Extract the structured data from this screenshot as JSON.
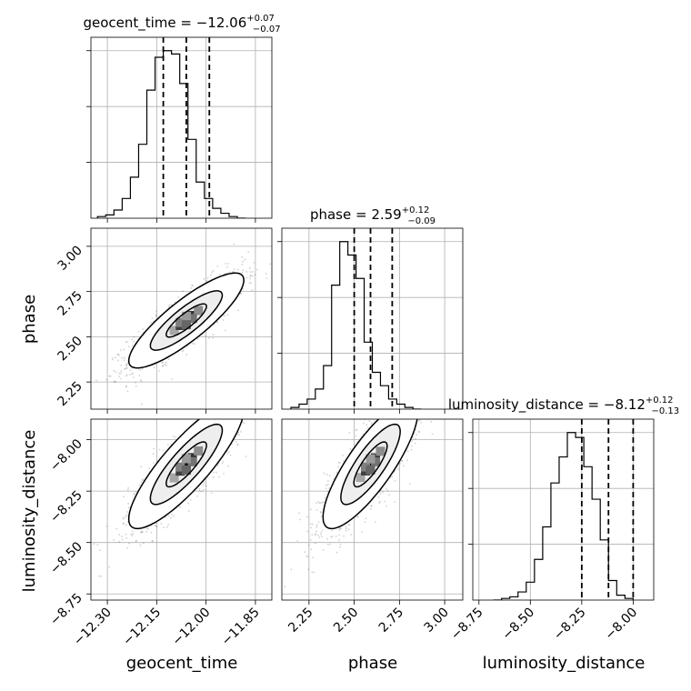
{
  "chart_data": {
    "type": "corner",
    "parameters": [
      {
        "name": "geocent_time",
        "median": "−12.06",
        "plus": "+0.07",
        "minus": "−0.07",
        "range": [
          -12.35,
          -11.8
        ],
        "ticks": [
          -12.3,
          -12.15,
          -12.0,
          -11.85
        ],
        "tick_labels": [
          "−12.30",
          "−12.15",
          "−12.00",
          "−11.85"
        ],
        "quantiles": [
          -12.13,
          -12.06,
          -11.99
        ],
        "hist_start": -12.33,
        "hist_bin": 0.025,
        "hist": [
          1,
          2,
          5,
          12,
          25,
          45,
          78,
          98,
          102,
          100,
          82,
          48,
          22,
          12,
          6,
          3,
          1,
          0
        ]
      },
      {
        "name": "phase",
        "median": "2.59",
        "plus": "+0.12",
        "minus": "−0.09",
        "range": [
          2.1,
          3.1
        ],
        "ticks": [
          2.25,
          2.5,
          2.75,
          3.0
        ],
        "tick_labels": [
          "2.25",
          "2.50",
          "2.75",
          "3.00"
        ],
        "quantiles": [
          2.5,
          2.59,
          2.71
        ],
        "hist_start": 2.15,
        "hist_bin": 0.045,
        "hist": [
          1,
          3,
          6,
          12,
          26,
          74,
          100,
          92,
          78,
          40,
          22,
          14,
          6,
          3,
          1,
          0
        ]
      },
      {
        "name": "luminosity_distance",
        "median": "−8.12",
        "plus": "+0.12",
        "minus": "−0.13",
        "range": [
          -8.78,
          -7.9
        ],
        "ticks": [
          -8.75,
          -8.5,
          -8.25,
          -8.0
        ],
        "tick_labels": [
          "−8.75",
          "−8.50",
          "−8.25",
          "−8.00"
        ],
        "quantiles": [
          -8.25,
          -8.12,
          -8.0
        ],
        "hist_start": -8.68,
        "hist_bin": 0.04,
        "hist": [
          0,
          1,
          2,
          5,
          11,
          25,
          45,
          72,
          88,
          103,
          100,
          82,
          62,
          37,
          12,
          3,
          1
        ]
      }
    ],
    "pairs": [
      {
        "x": 0,
        "y": 1,
        "rho": 0.85
      },
      {
        "x": 0,
        "y": 2,
        "rho": 0.85
      },
      {
        "x": 1,
        "y": 2,
        "rho": 0.82
      }
    ]
  }
}
